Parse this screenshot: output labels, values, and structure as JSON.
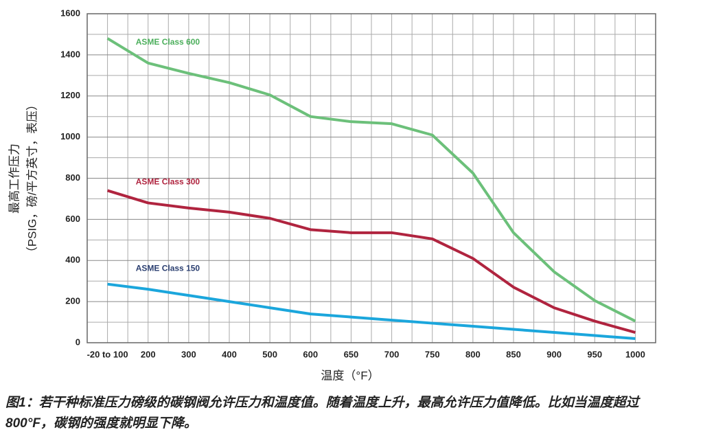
{
  "chart_data": {
    "type": "line",
    "x_label": "温度（°F）",
    "y_label": [
      "最高工作压力",
      "（PSIG，磅/平方英寸，表压）"
    ],
    "categories": [
      "-20 to 100",
      "200",
      "300",
      "400",
      "500",
      "600",
      "650",
      "700",
      "750",
      "800",
      "850",
      "900",
      "950",
      "1000"
    ],
    "series": [
      {
        "name": "ASME Class 600",
        "color": "#6cc07a",
        "label_color": "#4caf5c",
        "values": [
          1480,
          1360,
          1310,
          1265,
          1205,
          1100,
          1075,
          1065,
          1010,
          825,
          535,
          345,
          205,
          105
        ]
      },
      {
        "name": "ASME Class 300",
        "color": "#b0243f",
        "label_color": "#b0243f",
        "values": [
          740,
          680,
          655,
          635,
          605,
          550,
          535,
          535,
          505,
          410,
          270,
          170,
          105,
          50
        ]
      },
      {
        "name": "ASME Class 150",
        "color": "#1ba6dc",
        "label_color": "#2b3f70",
        "values": [
          285,
          260,
          230,
          200,
          170,
          140,
          125,
          110,
          95,
          80,
          65,
          50,
          35,
          20
        ]
      }
    ],
    "ylim": [
      0,
      1600
    ],
    "yticks": [
      0,
      200,
      400,
      600,
      800,
      1000,
      1200,
      1400,
      1600
    ],
    "grid": true,
    "caption": "图1：若干种标准压力磅级的碳钢阀允许压力和温度值。随着温度上升，最高允许压力值降低。比如当温度超过800°F，碳钢的强度就明显下降。"
  }
}
